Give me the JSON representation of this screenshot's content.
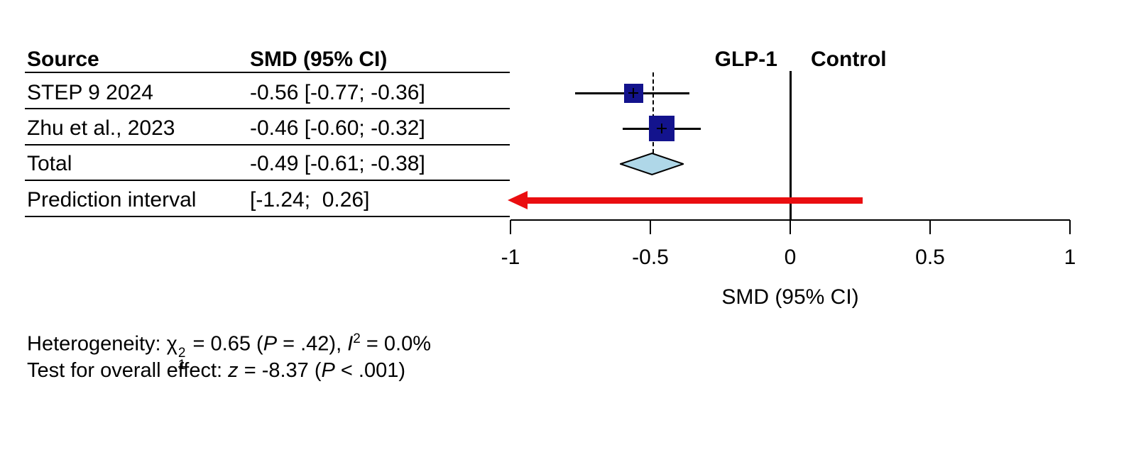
{
  "table": {
    "headers": {
      "source": "Source",
      "smd": "SMD (95% CI)"
    },
    "rows": [
      {
        "label": "STEP 9 2024",
        "ci_text": "-0.56 [-0.77; -0.36]"
      },
      {
        "label": "Zhu et al., 2023",
        "ci_text": "-0.46 [-0.60; -0.32]"
      },
      {
        "label": "Total",
        "ci_text": "-0.49 [-0.61; -0.38]"
      },
      {
        "label": "Prediction interval",
        "ci_text": "[-1.24;  0.26]"
      }
    ]
  },
  "group_labels": {
    "left": "GLP-1",
    "right": "Control"
  },
  "axis": {
    "label": "SMD (95% CI)",
    "tick_labels": [
      "-1",
      "-0.5",
      "0",
      "0.5",
      "1"
    ]
  },
  "footer": {
    "het": {
      "pre": "Heterogeneity: ",
      "chi": "χ",
      "chi_sup": "2",
      "chi_sub": "1",
      "s1": " = 0.65 (",
      "p": "P",
      "s2": " = .42), ",
      "i": "I",
      "i_sup": "2",
      "s3": " = 0.0%"
    },
    "eff": {
      "pre": "Test for overall effect: ",
      "z": "z",
      "s1": " = -8.37 (",
      "p": "P",
      "s2": " < .001)"
    }
  },
  "colors": {
    "square": "#13138D",
    "diamond_fill": "#AFD7E8",
    "diamond_stroke": "#000000",
    "arrow": "#EA0E10",
    "line": "#000000"
  },
  "chart_data": {
    "type": "scatter",
    "subtype": "forest_plot_meta_analysis",
    "title": "",
    "xlabel": "SMD (95% CI)",
    "x_axis": {
      "ticks": [
        -1,
        -0.5,
        0,
        0.5,
        1
      ],
      "range": [
        -1,
        1
      ]
    },
    "grid": false,
    "studies": [
      {
        "name": "STEP 9 2024",
        "smd": -0.56,
        "ci_low": -0.77,
        "ci_high": -0.36,
        "marker_rel_size": 0.75
      },
      {
        "name": "Zhu et al., 2023",
        "smd": -0.46,
        "ci_low": -0.6,
        "ci_high": -0.32,
        "marker_rel_size": 1.0
      }
    ],
    "total": {
      "name": "Total",
      "smd": -0.49,
      "ci_low": -0.61,
      "ci_high": -0.38
    },
    "prediction_interval": {
      "low": -1.24,
      "high": 0.26
    },
    "reference_line_x": 0,
    "dashed_line_x": -0.49,
    "group_left_label": "GLP-1",
    "group_right_label": "Control",
    "heterogeneity": {
      "chi2": 0.65,
      "df": 1,
      "p": 0.42,
      "i2_percent": 0.0
    },
    "overall_effect": {
      "z": -8.37,
      "p": "< .001"
    }
  }
}
